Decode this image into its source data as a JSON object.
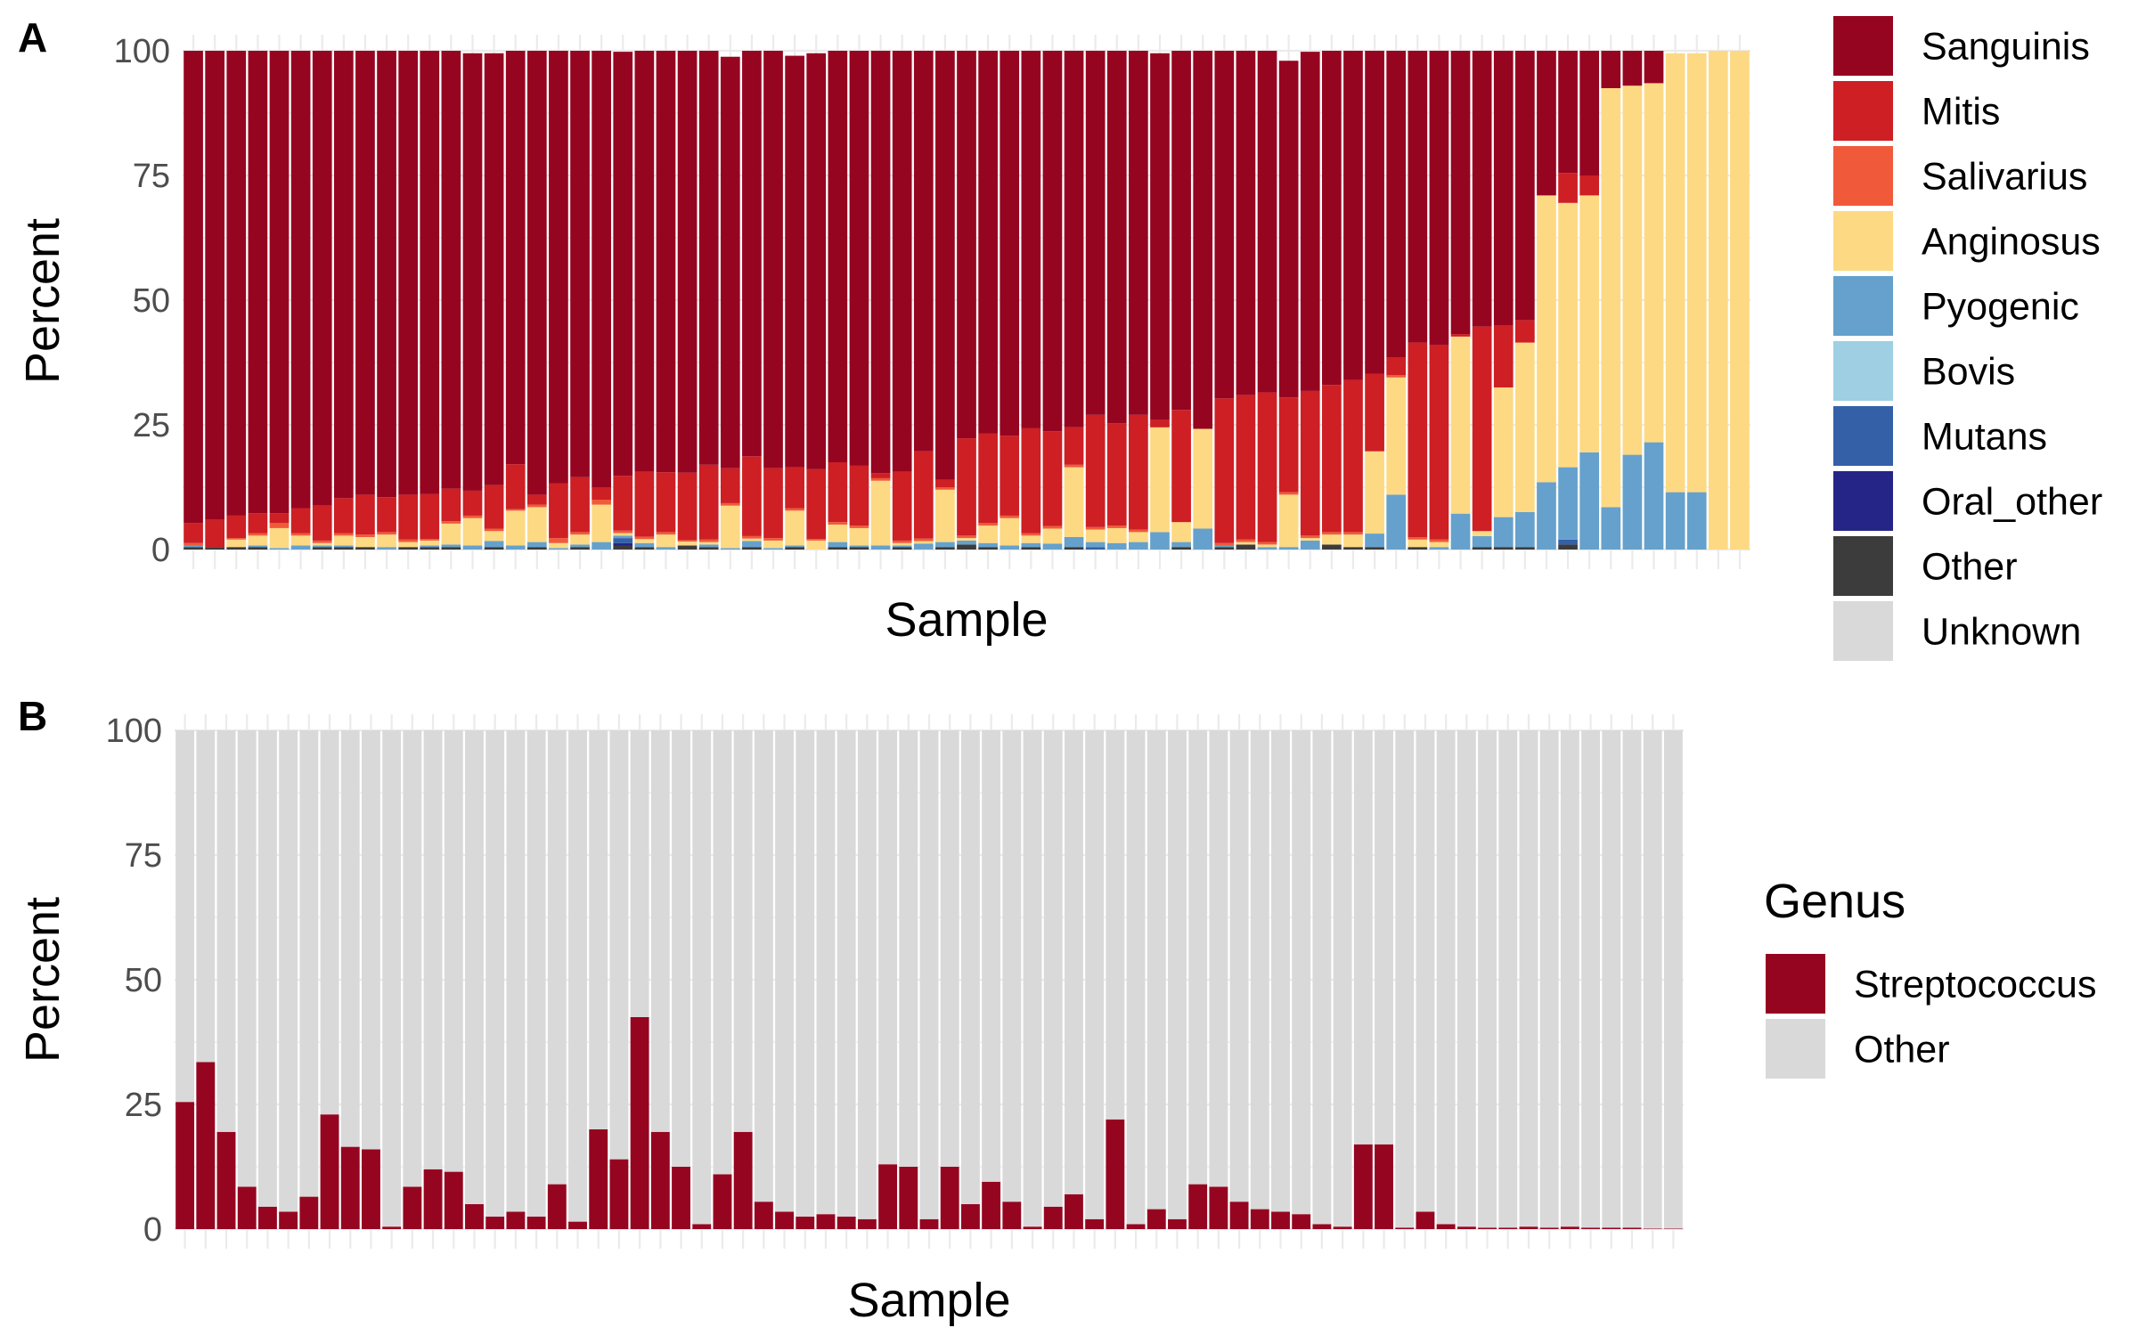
{
  "chart_data": [
    {
      "panel": "A",
      "type": "bar",
      "stacked": true,
      "xlabel": "Sample",
      "ylabel": "Percent",
      "ylim": [
        0,
        100
      ],
      "yticks": [
        "0",
        "25",
        "50",
        "75",
        "100"
      ],
      "grid": true,
      "legend_position": "right",
      "n_samples": 73,
      "series": [
        {
          "name": "Unknown",
          "color": "#d9d9d9",
          "values": [
            0,
            0,
            0,
            0,
            0,
            0,
            0,
            0,
            0,
            0,
            0,
            0,
            0,
            0,
            0,
            0,
            0,
            0,
            0,
            0,
            0,
            0,
            0,
            0,
            0,
            0,
            0,
            0,
            0,
            0,
            0,
            0,
            0,
            0,
            0,
            0,
            0,
            0,
            0,
            0,
            0,
            0,
            0,
            0,
            0,
            0,
            0,
            0,
            0,
            0,
            0,
            0,
            0,
            0,
            0,
            0,
            0,
            0,
            0,
            0,
            0,
            0,
            0,
            0,
            0,
            0,
            0,
            0,
            0,
            0,
            0,
            0,
            0
          ]
        },
        {
          "name": "Other",
          "color": "#3c3c3c",
          "values": [
            0.5,
            0.5,
            0.5,
            0.5,
            0,
            0,
            0.5,
            0.5,
            0.5,
            0,
            0.5,
            0.5,
            0.5,
            0,
            0.5,
            0,
            0.5,
            0,
            0.5,
            0,
            0.8,
            0.5,
            0,
            0.8,
            0.5,
            0,
            0.5,
            0,
            0.5,
            0,
            0.5,
            0.5,
            0,
            0.5,
            0,
            0.5,
            1,
            0.5,
            0,
            0.5,
            0,
            0.5,
            0,
            0,
            0,
            0,
            0.5,
            0,
            0.5,
            1,
            0,
            0,
            0,
            1,
            0.5,
            0.5,
            0,
            0.5,
            0,
            0,
            0.5,
            0.5,
            0.5,
            0,
            1,
            0,
            0,
            0,
            0,
            0,
            0,
            0,
            0
          ]
        },
        {
          "name": "Oral_other",
          "color": "#252587",
          "values": [
            0,
            0,
            0,
            0,
            0,
            0,
            0,
            0,
            0,
            0,
            0,
            0,
            0,
            0,
            0,
            0,
            0,
            0,
            0,
            0,
            0.5,
            0,
            0,
            0,
            0,
            0,
            0,
            0,
            0,
            0,
            0,
            0,
            0,
            0,
            0,
            0,
            0,
            0,
            0,
            0,
            0,
            0,
            0,
            0,
            0,
            0,
            0,
            0,
            0,
            0,
            0,
            0,
            0,
            0,
            0,
            0,
            0,
            0,
            0,
            0,
            0,
            0,
            0,
            0,
            0,
            0,
            0,
            0,
            0,
            0,
            0,
            0,
            0
          ]
        },
        {
          "name": "Mutans",
          "color": "#3460a8",
          "values": [
            0,
            0,
            0,
            0,
            0,
            0,
            0,
            0,
            0,
            0,
            0,
            0,
            0,
            0,
            0,
            0,
            0,
            0,
            0,
            0,
            1,
            0,
            0,
            0,
            0,
            0,
            0,
            0,
            0,
            0,
            0,
            0,
            0,
            0,
            0,
            0,
            0,
            0,
            0,
            0,
            0,
            0,
            0.5,
            0,
            0,
            0,
            0,
            0,
            0,
            0,
            0,
            0,
            0,
            0,
            0,
            0,
            0,
            0,
            0,
            0,
            0,
            0,
            0,
            0,
            1,
            0,
            0,
            0,
            0,
            0,
            0,
            0,
            0
          ]
        },
        {
          "name": "Bovis",
          "color": "#9ecfe2",
          "values": [
            0,
            0,
            0,
            0,
            0,
            0,
            0,
            0,
            0,
            0,
            0,
            0,
            0,
            0,
            0,
            0,
            0,
            0,
            0,
            0,
            0,
            0,
            0,
            0,
            0,
            0,
            0,
            0,
            0,
            0,
            0,
            0,
            0,
            0,
            0,
            0,
            0,
            0,
            0,
            0,
            0,
            0,
            0,
            0,
            0,
            0,
            0,
            0,
            0,
            0,
            0,
            0,
            0,
            0,
            0,
            0,
            0,
            0,
            0,
            0,
            0,
            0,
            0,
            0,
            0,
            0,
            0,
            0,
            0,
            0,
            0,
            0,
            0
          ]
        },
        {
          "name": "Pyogenic",
          "color": "#65a1cc",
          "values": [
            0.3,
            0,
            0,
            0.3,
            0.3,
            0.8,
            0.3,
            0.3,
            0,
            0.5,
            0,
            0.3,
            0.5,
            0.8,
            1.2,
            0.8,
            1,
            0.3,
            0.5,
            1.5,
            0.5,
            0.8,
            0.5,
            0,
            0.5,
            0.3,
            1.2,
            0.3,
            0.3,
            0,
            1,
            0.3,
            0.8,
            0.3,
            1.2,
            1,
            0.8,
            0.8,
            0.8,
            0.8,
            1.2,
            2,
            1,
            1.3,
            1.5,
            3.5,
            1,
            4.2,
            0.3,
            0,
            0.5,
            0.5,
            1.8,
            0,
            0,
            2.7,
            11,
            0,
            0.5,
            7.2,
            2.2,
            6,
            7,
            13.5,
            14.5,
            19.5,
            8.5,
            19,
            21.5,
            11.5,
            11.5,
            0,
            0
          ]
        },
        {
          "name": "Anginosus",
          "color": "#fdd984",
          "values": [
            0,
            0,
            1.5,
            2,
            4,
            2,
            0.5,
            2,
            2,
            2.5,
            1,
            1,
            4.2,
            5.5,
            2,
            7,
            7,
            1,
            2,
            7.5,
            0.5,
            0.8,
            2.5,
            0.8,
            0.5,
            8.5,
            0.5,
            1.5,
            7,
            1.8,
            3.5,
            3.5,
            13,
            0.5,
            0.5,
            10.5,
            0.5,
            3.5,
            5.5,
            1.5,
            3,
            14,
            2.5,
            3,
            2,
            21,
            4,
            20,
            0,
            0.5,
            0.5,
            10.5,
            0.5,
            2,
            2.5,
            16.5,
            23.5,
            1.5,
            1,
            35.5,
            1,
            26,
            34,
            57.5,
            53,
            51.5,
            84,
            74,
            72,
            88,
            88,
            100,
            100
          ]
        },
        {
          "name": "Salivarius",
          "color": "#f05a3a",
          "values": [
            0.5,
            0,
            0.3,
            0.5,
            1,
            0.5,
            0.5,
            0.5,
            0.5,
            0.5,
            0.5,
            0.3,
            0.5,
            0.5,
            0.5,
            0.3,
            0.5,
            1,
            0.5,
            1,
            0.5,
            0.5,
            0.5,
            0.3,
            0.5,
            0.5,
            0.5,
            0.5,
            0.5,
            0.3,
            0.5,
            0.5,
            0.5,
            0.5,
            0.5,
            0.5,
            0.5,
            0.5,
            0.5,
            0.5,
            0.5,
            0.5,
            0.5,
            0.5,
            0.5,
            0,
            0,
            0,
            0.5,
            0.5,
            0.5,
            0.5,
            0.5,
            0.5,
            0.5,
            0,
            0.5,
            0.5,
            0.5,
            0,
            0,
            0,
            0,
            0,
            0,
            0,
            0,
            0,
            0,
            0,
            0,
            0,
            0
          ]
        },
        {
          "name": "Mitis",
          "color": "#cd1f24",
          "values": [
            4,
            5.5,
            4.5,
            4,
            2,
            5,
            7,
            7,
            8,
            7,
            9,
            9,
            6.5,
            5,
            8.7,
            9,
            2,
            11,
            11,
            2.5,
            11,
            13,
            12,
            13.5,
            15,
            7,
            16,
            14,
            8.2,
            14,
            12,
            12,
            1,
            13.8,
            17.5,
            1.5,
            19.5,
            18,
            16,
            21,
            19,
            7.5,
            22.5,
            20.5,
            23,
            1.5,
            22.5,
            0,
            29,
            29,
            30,
            19,
            29,
            29.5,
            30.5,
            15.5,
            3.5,
            39,
            39,
            0.5,
            41,
            12.5,
            4.5,
            0,
            6,
            4,
            0,
            0,
            0,
            0,
            0,
            0,
            0
          ]
        },
        {
          "name": "Sanguinis",
          "color": "#960520",
          "values": [
            94.7,
            94,
            93.2,
            92.7,
            92.7,
            91.7,
            91.2,
            89.7,
            89,
            89.5,
            89,
            89,
            87.8,
            87.7,
            86.6,
            82.9,
            89,
            86.7,
            85.5,
            87.5,
            85,
            84.4,
            84.5,
            84.6,
            83,
            82.5,
            82.3,
            83.7,
            82.5,
            83.4,
            82.5,
            83.2,
            84.7,
            84.4,
            80.3,
            86,
            77.7,
            76.7,
            77.2,
            75.7,
            76.3,
            75.5,
            73.5,
            74.7,
            73,
            73.5,
            72,
            75.8,
            69.7,
            69,
            68.5,
            67.5,
            68,
            67,
            66,
            64.8,
            61.5,
            58.5,
            59,
            56.8,
            55.8,
            55.5,
            54.5,
            29,
            26.5,
            25,
            7.5,
            7,
            6.5,
            0,
            0,
            0,
            0
          ]
        }
      ]
    },
    {
      "panel": "B",
      "type": "bar",
      "stacked": true,
      "xlabel": "Sample",
      "ylabel": "Percent",
      "ylim": [
        0,
        100
      ],
      "yticks": [
        "0",
        "25",
        "50",
        "75",
        "100"
      ],
      "grid": true,
      "legend_position": "right",
      "legend_title": "Genus",
      "n_samples": 73,
      "series": [
        {
          "name": "Streptococcus",
          "color": "#960520",
          "values": [
            25.5,
            33.5,
            19.5,
            8.5,
            4.5,
            3.5,
            6.5,
            23,
            16.5,
            16,
            0.5,
            8.5,
            12,
            11.5,
            5,
            2.5,
            3.5,
            2.5,
            9,
            1.5,
            20,
            14,
            42.5,
            19.5,
            12.5,
            1,
            11,
            19.5,
            5.5,
            3.5,
            2.5,
            3,
            2.5,
            2,
            13,
            12.5,
            2,
            12.5,
            5,
            9.5,
            5.5,
            0.5,
            4.5,
            7,
            2,
            22,
            1,
            4,
            2,
            9,
            8.5,
            5.5,
            4,
            3.5,
            3,
            1,
            0.5,
            17,
            17,
            0.3,
            3.5,
            1,
            0.5,
            0.3,
            0.3,
            0.5,
            0.3,
            0.5,
            0.3,
            0.3,
            0.3,
            0.1,
            0.1
          ]
        },
        {
          "name": "Other",
          "color": "#d9d9d9",
          "values": [
            74.5,
            66.5,
            80.5,
            91.5,
            95.5,
            96.5,
            93.5,
            77,
            83.5,
            84,
            99.5,
            91.5,
            88,
            88.5,
            95,
            97.5,
            96.5,
            97.5,
            91,
            98.5,
            80,
            86,
            57.5,
            80.5,
            87.5,
            99,
            89,
            80.5,
            94.5,
            96.5,
            97.5,
            97,
            97.5,
            98,
            87,
            87.5,
            98,
            87.5,
            95,
            90.5,
            94.5,
            99.5,
            95.5,
            93,
            98,
            78,
            99,
            96,
            98,
            91,
            91.5,
            94.5,
            96,
            96.5,
            97,
            99,
            99.5,
            83,
            83,
            99.7,
            96.5,
            99,
            99.5,
            99.7,
            99.7,
            99.5,
            99.7,
            99.5,
            99.7,
            99.7,
            99.7,
            99.9,
            99.9
          ]
        }
      ]
    }
  ]
}
